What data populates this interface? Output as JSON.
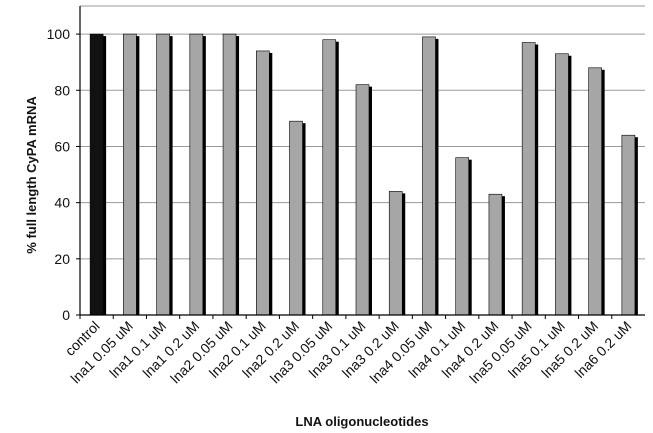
{
  "chart_data": {
    "type": "bar",
    "xlabel": "LNA oligonucleotides",
    "ylabel": "% full length CyPA mRNA",
    "ylim": [
      0,
      110
    ],
    "yticks": [
      0,
      20,
      40,
      60,
      80,
      100
    ],
    "grid": "horizontal",
    "legend": "none",
    "categories": [
      "control",
      "lna1 0.05 uM",
      "lna1 0.1 uM",
      "lna1 0.2 uM",
      "lna2 0.05 uM",
      "lna2 0.1 uM",
      "lna2 0.2 uM",
      "lna3 0.05 uM",
      "lna3 0.1 uM",
      "lna3 0.2 uM",
      "lna4 0.05 uM",
      "lna4 0.1 uM",
      "lna4 0.2 uM",
      "lna5 0.05 uM",
      "lna5 0.1 uM",
      "lna5 0.2 uM",
      "lna6 0.2 uM"
    ],
    "values": [
      100,
      100,
      100,
      100,
      100,
      94,
      69,
      98,
      82,
      44,
      99,
      56,
      43,
      97,
      93,
      88,
      64
    ],
    "colors": {
      "control": "#111111",
      "bars": "#a6a6a6",
      "bar_shadow": "#000000",
      "gridline": "#9a9a9a",
      "axis": "#000000"
    }
  }
}
